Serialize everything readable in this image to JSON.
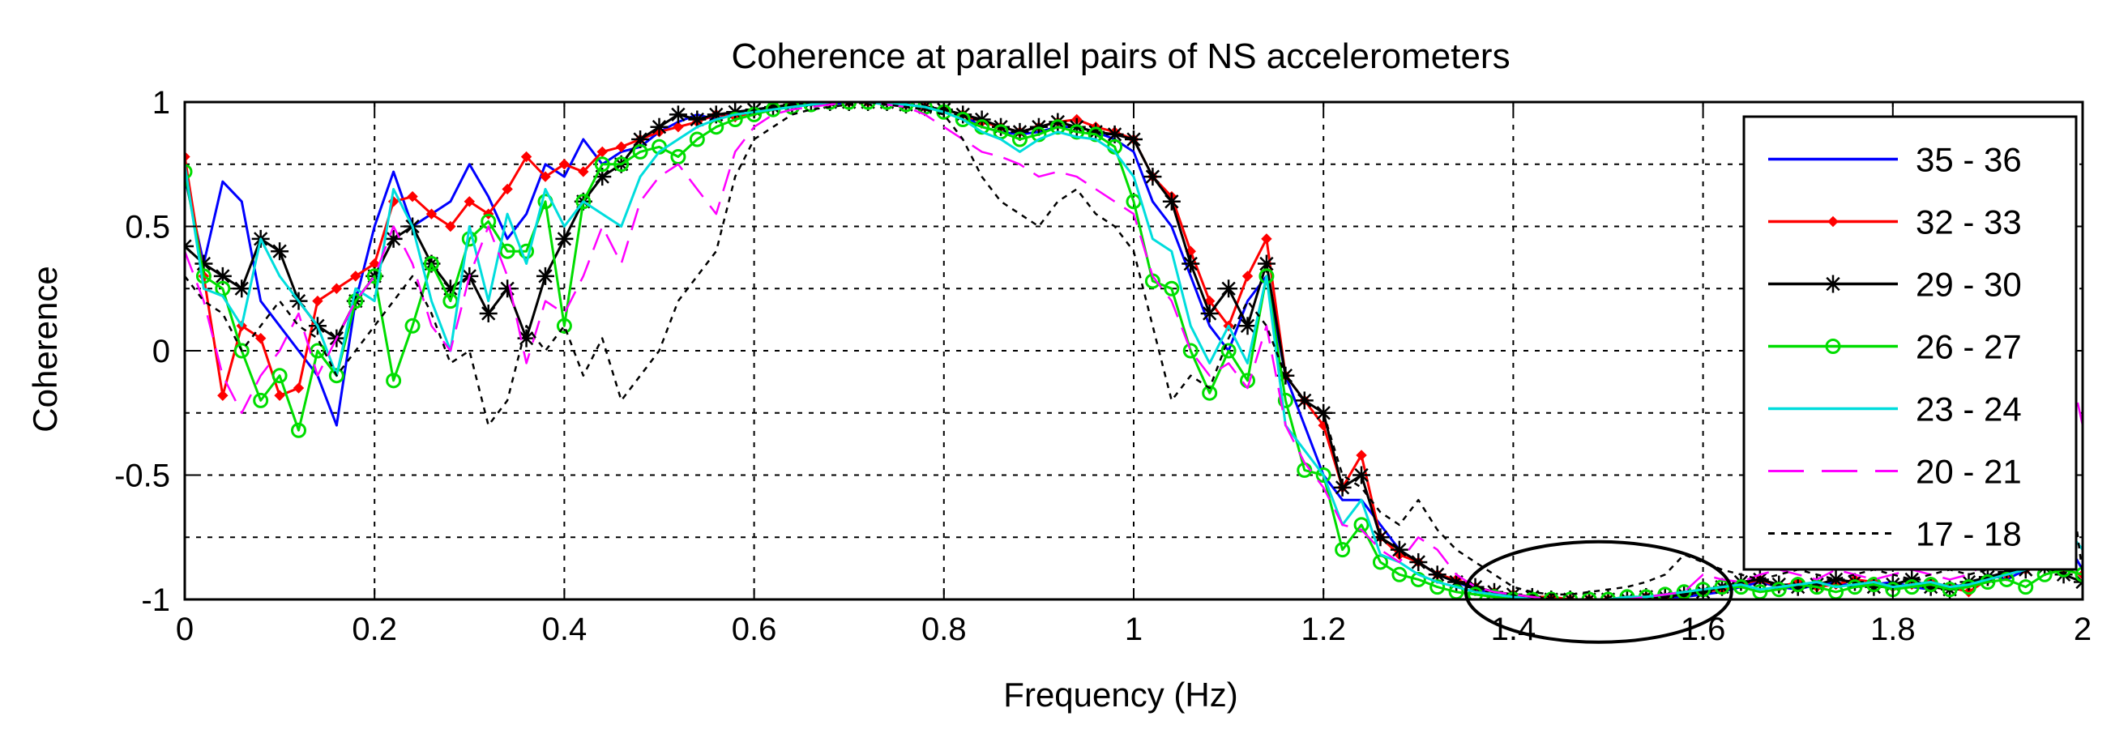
{
  "chart_data": {
    "type": "line",
    "title": "Coherence at parallel pairs of NS accelerometers",
    "xlabel": "Frequency (Hz)",
    "ylabel": "Coherence",
    "xlim": [
      0,
      2
    ],
    "ylim": [
      -1,
      1
    ],
    "x_ticks": [
      0,
      0.2,
      0.4,
      0.6,
      0.8,
      1,
      1.2,
      1.4,
      1.6,
      1.8,
      2
    ],
    "x_tick_labels": [
      "0",
      "0.2",
      "0.4",
      "0.6",
      "0.8",
      "1",
      "1.2",
      "1.4",
      "1.6",
      "1.8",
      "2"
    ],
    "y_ticks": [
      -1,
      -0.5,
      0,
      0.5,
      1
    ],
    "y_tick_labels": [
      "-1",
      "-0.5",
      "0",
      "0.5",
      "1"
    ],
    "grid": true,
    "grid_style": "dotted",
    "legend_position": "top-right",
    "annotation": "ellipse around 1.35–1.63 Hz at coherence ≈ -1",
    "x": [
      0,
      0.02,
      0.04,
      0.06,
      0.08,
      0.1,
      0.12,
      0.14,
      0.16,
      0.18,
      0.2,
      0.22,
      0.24,
      0.26,
      0.28,
      0.3,
      0.32,
      0.34,
      0.36,
      0.38,
      0.4,
      0.42,
      0.44,
      0.46,
      0.48,
      0.5,
      0.52,
      0.54,
      0.56,
      0.58,
      0.6,
      0.62,
      0.64,
      0.66,
      0.68,
      0.7,
      0.72,
      0.74,
      0.76,
      0.78,
      0.8,
      0.82,
      0.84,
      0.86,
      0.88,
      0.9,
      0.92,
      0.94,
      0.96,
      0.98,
      1.0,
      1.02,
      1.04,
      1.06,
      1.08,
      1.1,
      1.12,
      1.14,
      1.16,
      1.18,
      1.2,
      1.22,
      1.24,
      1.26,
      1.28,
      1.3,
      1.32,
      1.34,
      1.36,
      1.38,
      1.4,
      1.42,
      1.44,
      1.46,
      1.48,
      1.5,
      1.52,
      1.54,
      1.56,
      1.58,
      1.6,
      1.62,
      1.64,
      1.66,
      1.68,
      1.7,
      1.72,
      1.74,
      1.76,
      1.78,
      1.8,
      1.82,
      1.84,
      1.86,
      1.88,
      1.9,
      1.92,
      1.94,
      1.96,
      1.98,
      2.0
    ],
    "series": [
      {
        "name": "35 - 36",
        "color": "#0000ff",
        "style": "solid",
        "marker": "none",
        "values": [
          0.7,
          0.35,
          0.68,
          0.6,
          0.2,
          0.1,
          0.0,
          -0.1,
          -0.3,
          0.2,
          0.5,
          0.72,
          0.5,
          0.55,
          0.6,
          0.75,
          0.62,
          0.45,
          0.55,
          0.75,
          0.7,
          0.85,
          0.75,
          0.8,
          0.82,
          0.88,
          0.92,
          0.95,
          0.93,
          0.96,
          0.97,
          0.98,
          0.99,
          0.99,
          0.99,
          1.0,
          1.0,
          0.99,
          0.99,
          0.98,
          0.97,
          0.95,
          0.9,
          0.88,
          0.87,
          0.88,
          0.9,
          0.9,
          0.88,
          0.85,
          0.8,
          0.6,
          0.5,
          0.3,
          0.1,
          0.0,
          0.2,
          0.3,
          -0.1,
          -0.3,
          -0.5,
          -0.6,
          -0.6,
          -0.7,
          -0.8,
          -0.85,
          -0.9,
          -0.93,
          -0.96,
          -0.98,
          -0.99,
          -0.99,
          -1.0,
          -1.0,
          -1.0,
          -1.0,
          -1.0,
          -1.0,
          -0.99,
          -0.99,
          -0.98,
          -0.97,
          -0.95,
          -0.93,
          -0.95,
          -0.96,
          -0.94,
          -0.93,
          -0.95,
          -0.94,
          -0.93,
          -0.95,
          -0.96,
          -0.94,
          -0.95,
          -0.9,
          -0.92,
          -0.88,
          -0.85,
          -0.75,
          -0.88
        ]
      },
      {
        "name": "32 - 33",
        "color": "#ff0000",
        "style": "solid",
        "marker": "diamond",
        "values": [
          0.78,
          0.3,
          -0.18,
          0.1,
          0.05,
          -0.18,
          -0.15,
          0.2,
          0.25,
          0.3,
          0.35,
          0.6,
          0.62,
          0.55,
          0.5,
          0.6,
          0.55,
          0.65,
          0.78,
          0.7,
          0.75,
          0.72,
          0.8,
          0.82,
          0.85,
          0.88,
          0.9,
          0.92,
          0.95,
          0.94,
          0.96,
          0.98,
          0.99,
          1.0,
          1.0,
          1.0,
          1.0,
          1.0,
          0.99,
          0.98,
          0.97,
          0.95,
          0.92,
          0.9,
          0.88,
          0.9,
          0.92,
          0.93,
          0.9,
          0.88,
          0.85,
          0.7,
          0.62,
          0.4,
          0.2,
          0.1,
          0.3,
          0.45,
          -0.1,
          -0.2,
          -0.3,
          -0.55,
          -0.42,
          -0.75,
          -0.82,
          -0.85,
          -0.9,
          -0.92,
          -0.95,
          -0.97,
          -0.98,
          -0.99,
          -0.99,
          -1.0,
          -1.0,
          -1.0,
          -1.0,
          -0.99,
          -0.99,
          -0.98,
          -0.97,
          -0.96,
          -0.94,
          -0.92,
          -0.95,
          -0.93,
          -0.95,
          -0.94,
          -0.92,
          -0.93,
          -0.95,
          -0.94,
          -0.93,
          -0.95,
          -0.97,
          -0.92,
          -0.9,
          -0.88,
          -0.86,
          -0.88,
          -0.9
        ]
      },
      {
        "name": "29 - 30",
        "color": "#000000",
        "style": "solid",
        "marker": "asterisk",
        "values": [
          0.42,
          0.35,
          0.3,
          0.25,
          0.45,
          0.4,
          0.2,
          0.1,
          0.05,
          0.2,
          0.3,
          0.45,
          0.5,
          0.35,
          0.25,
          0.3,
          0.15,
          0.25,
          0.05,
          0.3,
          0.45,
          0.6,
          0.7,
          0.75,
          0.85,
          0.9,
          0.95,
          0.93,
          0.95,
          0.96,
          0.97,
          0.98,
          0.99,
          1.0,
          1.0,
          1.0,
          1.0,
          1.0,
          0.99,
          0.98,
          0.97,
          0.95,
          0.93,
          0.9,
          0.88,
          0.9,
          0.92,
          0.9,
          0.88,
          0.87,
          0.85,
          0.7,
          0.6,
          0.35,
          0.15,
          0.25,
          0.1,
          0.35,
          -0.1,
          -0.2,
          -0.25,
          -0.55,
          -0.5,
          -0.75,
          -0.8,
          -0.85,
          -0.9,
          -0.93,
          -0.95,
          -0.97,
          -0.98,
          -0.99,
          -1.0,
          -1.0,
          -1.0,
          -1.0,
          -1.0,
          -0.99,
          -0.99,
          -0.98,
          -0.97,
          -0.95,
          -0.93,
          -0.92,
          -0.94,
          -0.95,
          -0.94,
          -0.92,
          -0.93,
          -0.95,
          -0.94,
          -0.92,
          -0.95,
          -0.96,
          -0.93,
          -0.91,
          -0.89,
          -0.88,
          -0.87,
          -0.9,
          -0.93
        ]
      },
      {
        "name": "26 - 27",
        "color": "#00dd00",
        "style": "solid",
        "marker": "circle",
        "values": [
          0.72,
          0.3,
          0.25,
          0.0,
          -0.2,
          -0.1,
          -0.32,
          0.0,
          -0.1,
          0.2,
          0.3,
          -0.12,
          0.1,
          0.35,
          0.2,
          0.45,
          0.52,
          0.4,
          0.4,
          0.6,
          0.1,
          0.6,
          0.75,
          0.75,
          0.8,
          0.82,
          0.78,
          0.85,
          0.9,
          0.93,
          0.95,
          0.97,
          0.98,
          0.99,
          1.0,
          1.0,
          1.0,
          1.0,
          0.99,
          0.98,
          0.96,
          0.93,
          0.9,
          0.88,
          0.85,
          0.87,
          0.9,
          0.88,
          0.87,
          0.82,
          0.6,
          0.28,
          0.25,
          0.0,
          -0.17,
          0.0,
          -0.12,
          0.3,
          -0.2,
          -0.48,
          -0.5,
          -0.8,
          -0.7,
          -0.85,
          -0.9,
          -0.92,
          -0.95,
          -0.97,
          -0.98,
          -0.99,
          -1.0,
          -1.0,
          -1.0,
          -1.0,
          -1.0,
          -1.0,
          -0.99,
          -0.99,
          -0.98,
          -0.97,
          -0.96,
          -0.95,
          -0.95,
          -0.97,
          -0.96,
          -0.94,
          -0.95,
          -0.97,
          -0.95,
          -0.94,
          -0.96,
          -0.95,
          -0.94,
          -0.96,
          -0.95,
          -0.93,
          -0.92,
          -0.95,
          -0.9,
          -0.88,
          -0.9
        ]
      },
      {
        "name": "23 - 24",
        "color": "#00dddd",
        "style": "solid",
        "marker": "none",
        "values": [
          0.75,
          0.25,
          0.22,
          0.1,
          0.45,
          0.3,
          0.2,
          0.1,
          -0.1,
          0.25,
          0.2,
          0.65,
          0.5,
          0.2,
          0.0,
          0.5,
          0.2,
          0.55,
          0.35,
          0.65,
          0.5,
          0.6,
          0.55,
          0.5,
          0.7,
          0.8,
          0.85,
          0.9,
          0.93,
          0.95,
          0.96,
          0.97,
          0.98,
          0.99,
          1.0,
          1.0,
          1.0,
          0.99,
          0.99,
          0.98,
          0.96,
          0.93,
          0.88,
          0.85,
          0.8,
          0.85,
          0.88,
          0.86,
          0.85,
          0.8,
          0.7,
          0.45,
          0.4,
          0.1,
          -0.05,
          0.1,
          -0.05,
          0.3,
          -0.3,
          -0.4,
          -0.5,
          -0.7,
          -0.6,
          -0.82,
          -0.85,
          -0.9,
          -0.93,
          -0.95,
          -0.97,
          -0.98,
          -0.99,
          -1.0,
          -1.0,
          -1.0,
          -1.0,
          -1.0,
          -0.99,
          -0.99,
          -0.98,
          -0.97,
          -0.96,
          -0.95,
          -0.94,
          -0.96,
          -0.95,
          -0.94,
          -0.93,
          -0.95,
          -0.94,
          -0.93,
          -0.95,
          -0.94,
          -0.93,
          -0.95,
          -0.94,
          -0.92,
          -0.9,
          -0.88,
          -0.85,
          -0.7,
          -0.8
        ]
      },
      {
        "name": "20 - 21",
        "color": "#ff00ff",
        "style": "dashed",
        "marker": "none",
        "values": [
          0.4,
          0.2,
          -0.1,
          -0.25,
          -0.1,
          0.0,
          0.15,
          -0.1,
          0.05,
          0.2,
          0.3,
          0.5,
          0.35,
          0.1,
          0.0,
          0.3,
          0.5,
          0.3,
          -0.05,
          0.2,
          0.15,
          0.3,
          0.5,
          0.35,
          0.6,
          0.7,
          0.75,
          0.65,
          0.55,
          0.8,
          0.9,
          0.95,
          0.97,
          0.98,
          0.99,
          1.0,
          1.0,
          0.99,
          0.98,
          0.95,
          0.9,
          0.85,
          0.8,
          0.78,
          0.75,
          0.7,
          0.72,
          0.7,
          0.65,
          0.6,
          0.55,
          0.3,
          0.2,
          0.0,
          -0.1,
          -0.05,
          -0.15,
          0.1,
          -0.3,
          -0.45,
          -0.55,
          -0.7,
          -0.72,
          -0.8,
          -0.85,
          -0.75,
          -0.8,
          -0.9,
          -0.95,
          -0.97,
          -0.98,
          -0.99,
          -1.0,
          -1.0,
          -1.0,
          -1.0,
          -1.0,
          -0.99,
          -0.98,
          -0.97,
          -0.9,
          -0.92,
          -0.93,
          -0.9,
          -0.88,
          -0.9,
          -0.92,
          -0.88,
          -0.9,
          -0.92,
          -0.9,
          -0.88,
          -0.9,
          -0.92,
          -0.9,
          -0.85,
          -0.82,
          -0.8,
          -0.7,
          0.05,
          -0.3
        ]
      },
      {
        "name": "17 - 18",
        "color": "#000000",
        "style": "dotted",
        "marker": "none",
        "values": [
          0.3,
          0.2,
          0.15,
          0.0,
          0.1,
          0.2,
          0.1,
          0.05,
          -0.1,
          0.0,
          0.1,
          0.2,
          0.3,
          0.15,
          -0.05,
          0.0,
          -0.3,
          -0.2,
          0.1,
          0.0,
          0.1,
          -0.1,
          0.05,
          -0.2,
          -0.1,
          0.0,
          0.2,
          0.3,
          0.4,
          0.7,
          0.85,
          0.9,
          0.95,
          0.97,
          0.98,
          0.99,
          1.0,
          0.99,
          0.98,
          0.97,
          0.95,
          0.85,
          0.7,
          0.6,
          0.55,
          0.5,
          0.6,
          0.65,
          0.55,
          0.5,
          0.4,
          0.1,
          -0.2,
          -0.1,
          -0.15,
          0.05,
          0.2,
          0.1,
          -0.1,
          -0.2,
          -0.25,
          -0.5,
          -0.55,
          -0.65,
          -0.7,
          -0.6,
          -0.72,
          -0.8,
          -0.85,
          -0.9,
          -0.95,
          -0.97,
          -0.98,
          -0.98,
          -0.97,
          -0.96,
          -0.95,
          -0.93,
          -0.9,
          -0.82,
          -0.85,
          -0.88,
          -0.9,
          -0.92,
          -0.9,
          -0.88,
          -0.9,
          -0.92,
          -0.9,
          -0.88,
          -0.9,
          -0.92,
          -0.9,
          -0.88,
          -0.9,
          -0.88,
          -0.85,
          -0.7,
          -0.5,
          -0.3,
          -0.9
        ]
      }
    ]
  }
}
